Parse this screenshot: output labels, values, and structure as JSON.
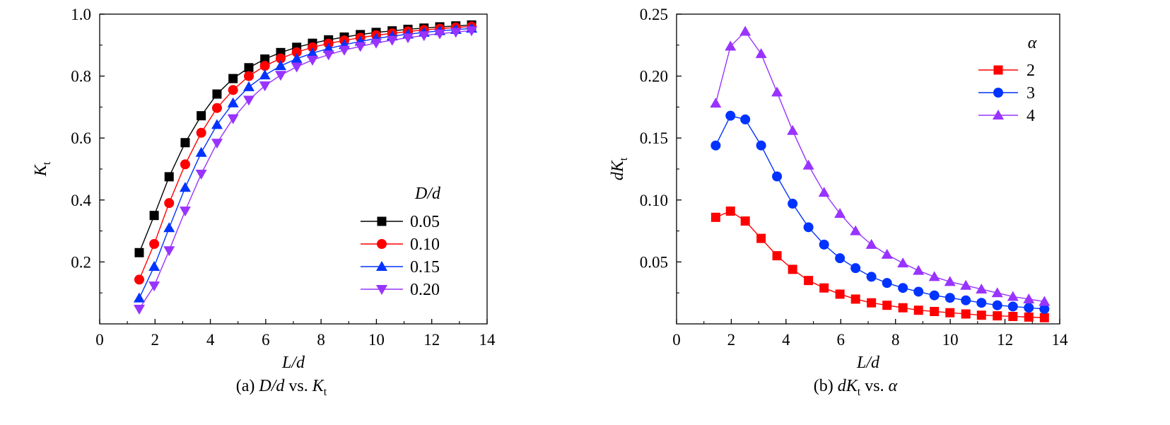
{
  "chart_data": [
    {
      "type": "line",
      "caption": {
        "prefix": "(a) ",
        "var1": "D/d",
        "mid": " vs. ",
        "var2_main": "K",
        "var2_sub": "t"
      },
      "xlabel": "L/d",
      "ylabel": {
        "main": "K",
        "sub": "t"
      },
      "xlim": [
        0,
        14
      ],
      "ylim": [
        0,
        1.0
      ],
      "xticks": [
        0,
        2,
        4,
        6,
        8,
        10,
        12,
        14
      ],
      "yticks": [
        0.2,
        0.4,
        0.6,
        0.8,
        1.0
      ],
      "ytick_labels": [
        "0.2",
        "0.4",
        "0.6",
        "0.8",
        "1.0"
      ],
      "legend": {
        "title": "D/d",
        "placement": "lower-right"
      },
      "x": [
        1.43,
        1.97,
        2.51,
        3.09,
        3.67,
        4.24,
        4.82,
        5.39,
        5.97,
        6.54,
        7.12,
        7.69,
        8.27,
        8.84,
        9.42,
        9.99,
        10.57,
        11.14,
        11.72,
        12.29,
        12.87,
        13.44
      ],
      "series": [
        {
          "name": "0.05",
          "color": "#000000",
          "marker": "square",
          "values": [
            0.23,
            0.35,
            0.475,
            0.585,
            0.672,
            0.742,
            0.792,
            0.827,
            0.855,
            0.876,
            0.893,
            0.906,
            0.917,
            0.926,
            0.934,
            0.941,
            0.946,
            0.951,
            0.955,
            0.959,
            0.962,
            0.965
          ]
        },
        {
          "name": "0.10",
          "color": "#ff0000",
          "marker": "circle",
          "values": [
            0.143,
            0.258,
            0.39,
            0.515,
            0.617,
            0.697,
            0.755,
            0.8,
            0.833,
            0.857,
            0.877,
            0.893,
            0.905,
            0.915,
            0.924,
            0.932,
            0.938,
            0.944,
            0.949,
            0.953,
            0.957,
            0.96
          ]
        },
        {
          "name": "0.15",
          "color": "#0033ff",
          "marker": "triangle-up",
          "values": [
            0.083,
            0.185,
            0.31,
            0.44,
            0.553,
            0.643,
            0.713,
            0.765,
            0.803,
            0.833,
            0.856,
            0.874,
            0.889,
            0.901,
            0.912,
            0.921,
            0.929,
            0.935,
            0.941,
            0.946,
            0.95,
            0.954
          ]
        },
        {
          "name": "0.20",
          "color": "#9933ff",
          "marker": "triangle-down",
          "values": [
            0.048,
            0.123,
            0.237,
            0.365,
            0.484,
            0.584,
            0.663,
            0.723,
            0.769,
            0.803,
            0.83,
            0.852,
            0.869,
            0.884,
            0.896,
            0.907,
            0.916,
            0.924,
            0.931,
            0.937,
            0.942,
            0.947
          ]
        }
      ]
    },
    {
      "type": "line",
      "caption": {
        "prefix": "(b) ",
        "var1_main": "dK",
        "var1_sub": "t",
        "mid": " vs. ",
        "var2": "α"
      },
      "xlabel": "L/d",
      "ylabel": {
        "main": "dK",
        "sub": "t"
      },
      "xlim": [
        0,
        14
      ],
      "ylim": [
        0,
        0.25
      ],
      "xticks": [
        0,
        2,
        4,
        6,
        8,
        10,
        12,
        14
      ],
      "yticks": [
        0.05,
        0.1,
        0.15,
        0.2,
        0.25
      ],
      "ytick_labels": [
        "0.05",
        "0.10",
        "0.15",
        "0.20",
        "0.25"
      ],
      "legend": {
        "title": "α",
        "placement": "top-right"
      },
      "x": [
        1.43,
        1.97,
        2.51,
        3.09,
        3.67,
        4.24,
        4.82,
        5.39,
        5.97,
        6.54,
        7.12,
        7.69,
        8.27,
        8.84,
        9.42,
        9.99,
        10.57,
        11.14,
        11.72,
        12.29,
        12.87,
        13.44
      ],
      "series": [
        {
          "name": "2",
          "color": "#ff0000",
          "marker": "square",
          "values": [
            0.086,
            0.091,
            0.083,
            0.069,
            0.055,
            0.044,
            0.035,
            0.029,
            0.024,
            0.02,
            0.017,
            0.015,
            0.013,
            0.011,
            0.01,
            0.009,
            0.008,
            0.007,
            0.0065,
            0.006,
            0.0055,
            0.005
          ]
        },
        {
          "name": "3",
          "color": "#0033ff",
          "marker": "circle",
          "values": [
            0.144,
            0.168,
            0.165,
            0.144,
            0.119,
            0.097,
            0.078,
            0.064,
            0.053,
            0.045,
            0.038,
            0.033,
            0.029,
            0.026,
            0.023,
            0.021,
            0.019,
            0.017,
            0.015,
            0.014,
            0.013,
            0.012
          ]
        },
        {
          "name": "4",
          "color": "#9933ff",
          "marker": "triangle-up",
          "values": [
            0.178,
            0.224,
            0.236,
            0.218,
            0.187,
            0.156,
            0.128,
            0.106,
            0.089,
            0.075,
            0.064,
            0.056,
            0.049,
            0.043,
            0.038,
            0.034,
            0.031,
            0.028,
            0.025,
            0.022,
            0.02,
            0.018
          ]
        }
      ]
    }
  ]
}
